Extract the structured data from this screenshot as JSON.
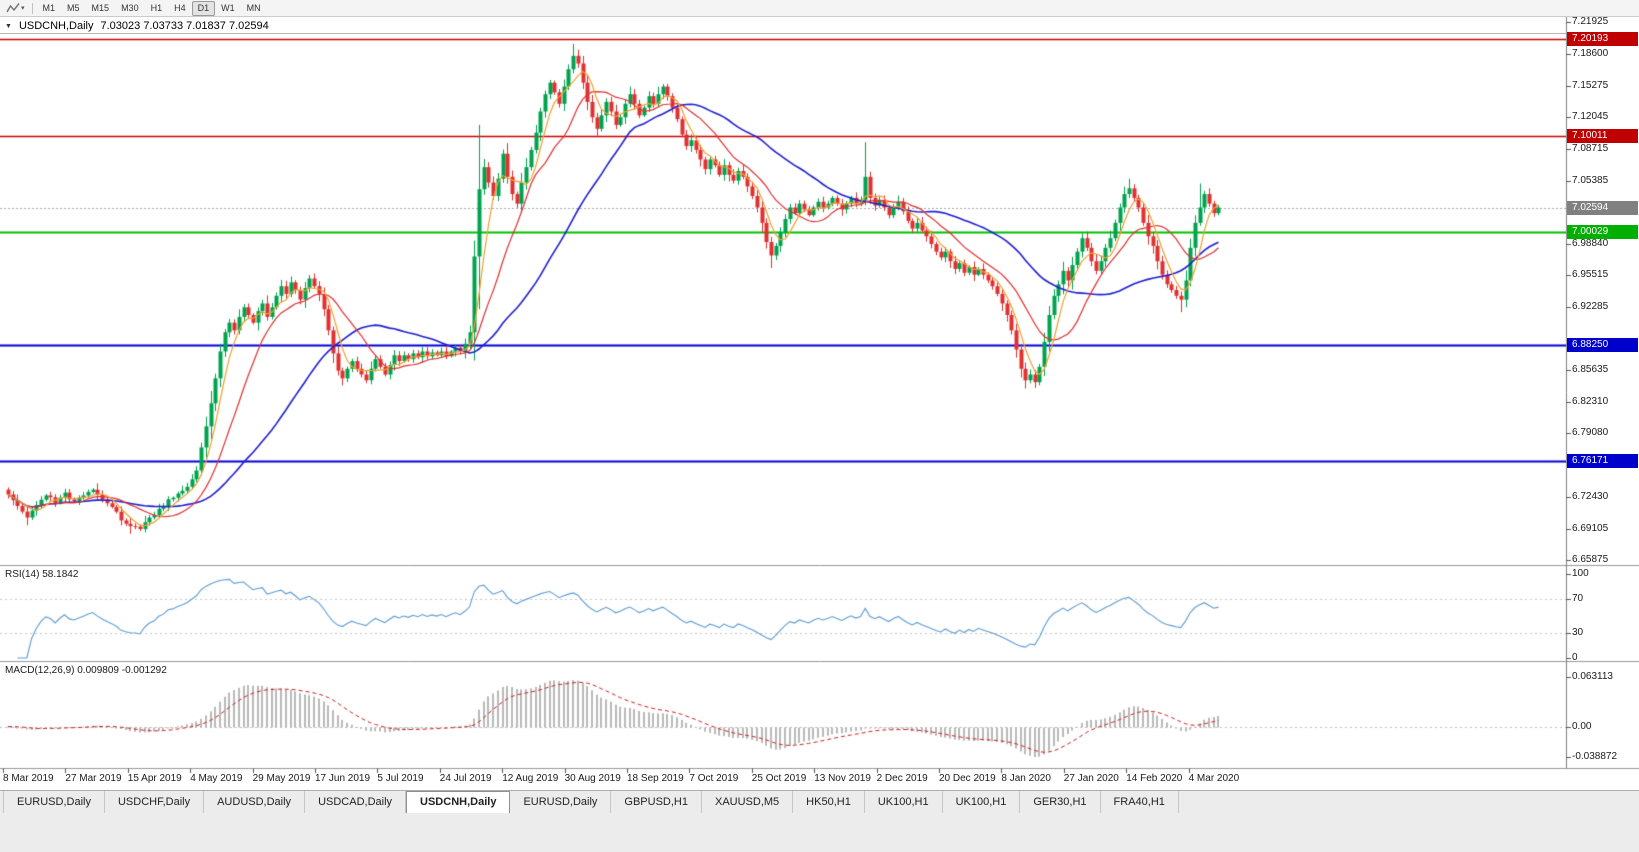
{
  "icons": {
    "collapse": "▼",
    "caret": "▾",
    "indicator": "zigzag-indicator-icon"
  },
  "toolbar": {
    "timeframes": [
      {
        "label": "M1",
        "active": false
      },
      {
        "label": "M5",
        "active": false
      },
      {
        "label": "M15",
        "active": false
      },
      {
        "label": "M30",
        "active": false
      },
      {
        "label": "H1",
        "active": false
      },
      {
        "label": "H4",
        "active": false
      },
      {
        "label": "D1",
        "active": true
      },
      {
        "label": "W1",
        "active": false
      },
      {
        "label": "MN",
        "active": false
      }
    ]
  },
  "chart": {
    "header": {
      "symbol": "USDCNH,Daily",
      "ohlc": "7.03023 7.03733 7.01837 7.02594"
    },
    "colors": {
      "up": "#00a24e",
      "down": "#e03131",
      "current_line": "#aaaaaa"
    },
    "y_ticks": [
      "7.21925",
      "7.18600",
      "7.15275",
      "7.12045",
      "7.08715",
      "7.05385",
      "6.98840",
      "6.95515",
      "6.92285",
      "6.85635",
      "6.82310",
      "6.79080",
      "6.72430",
      "6.69105",
      "6.65875"
    ],
    "badges": [
      {
        "label": "7.20193",
        "price": 7.20193,
        "bg": "#c00000"
      },
      {
        "label": "7.10011",
        "price": 7.10011,
        "bg": "#c00000"
      },
      {
        "label": "7.02594",
        "price": 7.02594,
        "bg": "#808080"
      },
      {
        "label": "7.00029",
        "price": 7.00029,
        "bg": "#00b000"
      },
      {
        "label": "6.88250",
        "price": 6.8825,
        "bg": "#0000cc"
      },
      {
        "label": "6.76171",
        "price": 6.76171,
        "bg": "#0000cc"
      }
    ]
  },
  "rsi": {
    "title": "RSI(14)",
    "value": "58.1842",
    "axis": [
      {
        "label": "100",
        "v": 100
      },
      {
        "label": "70",
        "v": 70
      },
      {
        "label": "30",
        "v": 30
      },
      {
        "label": "0",
        "v": 0
      }
    ],
    "range": [
      0,
      100
    ],
    "levels": [
      70,
      30
    ],
    "color": "#5e9cd3"
  },
  "macd": {
    "title": "MACD(12,26,9)",
    "values": "0.009809 -0.001292",
    "axis": [
      {
        "label": "0.063113",
        "v": 0.063113
      },
      {
        "label": "0.00",
        "v": 0
      },
      {
        "label": "-0.038872",
        "v": -0.038872
      }
    ],
    "range": [
      -0.038872,
      0.063113
    ],
    "histogram_color": "#b9b9b9",
    "signal_color": "#cc2222"
  },
  "tabs": {
    "active_index": 4,
    "items": [
      "EURUSD,Daily",
      "USDCHF,Daily",
      "AUDUSD,Daily",
      "USDCAD,Daily",
      "USDCNH,Daily",
      "EURUSD,Daily",
      "GBPUSD,H1",
      "XAUUSD,M5",
      "HK50,H1",
      "UK100,H1",
      "UK100,H1",
      "GER30,H1",
      "FRA40,H1"
    ]
  },
  "chart_data": {
    "type": "candlestick",
    "title": "USDCNH,Daily",
    "symbol": "USDCNH",
    "timeframe": "Daily",
    "last_quote": {
      "open": 7.03023,
      "high": 7.03733,
      "low": 7.01837,
      "close": 7.02594
    },
    "y_axis_range": [
      6.65875,
      7.21925
    ],
    "x_axis_dates": [
      "8 Mar 2019",
      "27 Mar 2019",
      "15 Apr 2019",
      "4 May 2019",
      "29 May 2019",
      "17 Jun 2019",
      "5 Jul 2019",
      "24 Jul 2019",
      "12 Aug 2019",
      "30 Aug 2019",
      "18 Sep 2019",
      "7 Oct 2019",
      "25 Oct 2019",
      "13 Nov 2019",
      "2 Dec 2019",
      "20 Dec 2019",
      "8 Jan 2020",
      "27 Jan 2020",
      "14 Feb 2020",
      "4 Mar 2020"
    ],
    "n_candles": 258,
    "noise_seed": 11,
    "close_anchors": [
      [
        0,
        6.727
      ],
      [
        2,
        6.715
      ],
      [
        4,
        6.703
      ],
      [
        6,
        6.716
      ],
      [
        8,
        6.726
      ],
      [
        10,
        6.718
      ],
      [
        12,
        6.729
      ],
      [
        14,
        6.72
      ],
      [
        16,
        6.726
      ],
      [
        18,
        6.732
      ],
      [
        20,
        6.722
      ],
      [
        22,
        6.714
      ],
      [
        24,
        6.7
      ],
      [
        26,
        6.694
      ],
      [
        28,
        6.691
      ],
      [
        30,
        6.703
      ],
      [
        32,
        6.712
      ],
      [
        34,
        6.722
      ],
      [
        36,
        6.728
      ],
      [
        38,
        6.735
      ],
      [
        40,
        6.752
      ],
      [
        41,
        6.776
      ],
      [
        42,
        6.798
      ],
      [
        43,
        6.822
      ],
      [
        44,
        6.848
      ],
      [
        45,
        6.876
      ],
      [
        46,
        6.896
      ],
      [
        47,
        6.906
      ],
      [
        48,
        6.898
      ],
      [
        49,
        6.912
      ],
      [
        50,
        6.922
      ],
      [
        51,
        6.914
      ],
      [
        52,
        6.906
      ],
      [
        53,
        6.918
      ],
      [
        54,
        6.926
      ],
      [
        55,
        6.912
      ],
      [
        56,
        6.922
      ],
      [
        57,
        6.934
      ],
      [
        58,
        6.944
      ],
      [
        59,
        6.936
      ],
      [
        60,
        6.948
      ],
      [
        61,
        6.94
      ],
      [
        62,
        6.93
      ],
      [
        63,
        6.942
      ],
      [
        64,
        6.952
      ],
      [
        65,
        6.944
      ],
      [
        66,
        6.936
      ],
      [
        67,
        6.92
      ],
      [
        68,
        6.898
      ],
      [
        69,
        6.874
      ],
      [
        70,
        6.856
      ],
      [
        71,
        6.848
      ],
      [
        72,
        6.858
      ],
      [
        73,
        6.866
      ],
      [
        74,
        6.858
      ],
      [
        75,
        6.852
      ],
      [
        76,
        6.846
      ],
      [
        77,
        6.858
      ],
      [
        78,
        6.868
      ],
      [
        79,
        6.86
      ],
      [
        80,
        6.852
      ],
      [
        81,
        6.862
      ],
      [
        82,
        6.872
      ],
      [
        83,
        6.866
      ],
      [
        84,
        6.872
      ],
      [
        85,
        6.868
      ],
      [
        86,
        6.874
      ],
      [
        87,
        6.87
      ],
      [
        88,
        6.876
      ],
      [
        89,
        6.871
      ],
      [
        90,
        6.875
      ],
      [
        91,
        6.872
      ],
      [
        92,
        6.876
      ],
      [
        93,
        6.871
      ],
      [
        94,
        6.876
      ],
      [
        95,
        6.88
      ],
      [
        96,
        6.876
      ],
      [
        97,
        6.884
      ],
      [
        98,
        6.896
      ],
      [
        99,
        6.975
      ],
      [
        100,
        7.045
      ],
      [
        101,
        7.068
      ],
      [
        102,
        7.052
      ],
      [
        103,
        7.038
      ],
      [
        104,
        7.056
      ],
      [
        105,
        7.082
      ],
      [
        106,
        7.058
      ],
      [
        107,
        7.04
      ],
      [
        108,
        7.03
      ],
      [
        109,
        7.052
      ],
      [
        110,
        7.068
      ],
      [
        111,
        7.086
      ],
      [
        112,
        7.104
      ],
      [
        113,
        7.126
      ],
      [
        114,
        7.144
      ],
      [
        115,
        7.156
      ],
      [
        116,
        7.146
      ],
      [
        117,
        7.134
      ],
      [
        118,
        7.152
      ],
      [
        119,
        7.17
      ],
      [
        120,
        7.184
      ],
      [
        121,
        7.176
      ],
      [
        122,
        7.156
      ],
      [
        123,
        7.136
      ],
      [
        124,
        7.12
      ],
      [
        125,
        7.108
      ],
      [
        126,
        7.122
      ],
      [
        127,
        7.136
      ],
      [
        128,
        7.126
      ],
      [
        129,
        7.112
      ],
      [
        130,
        7.12
      ],
      [
        131,
        7.134
      ],
      [
        132,
        7.144
      ],
      [
        133,
        7.134
      ],
      [
        134,
        7.122
      ],
      [
        135,
        7.13
      ],
      [
        136,
        7.142
      ],
      [
        137,
        7.134
      ],
      [
        138,
        7.144
      ],
      [
        139,
        7.152
      ],
      [
        140,
        7.142
      ],
      [
        141,
        7.13
      ],
      [
        142,
        7.118
      ],
      [
        143,
        7.102
      ],
      [
        144,
        7.09
      ],
      [
        145,
        7.096
      ],
      [
        146,
        7.086
      ],
      [
        147,
        7.076
      ],
      [
        148,
        7.066
      ],
      [
        149,
        7.076
      ],
      [
        150,
        7.07
      ],
      [
        151,
        7.06
      ],
      [
        152,
        7.07
      ],
      [
        153,
        7.06
      ],
      [
        154,
        7.054
      ],
      [
        155,
        7.064
      ],
      [
        156,
        7.058
      ],
      [
        157,
        7.048
      ],
      [
        158,
        7.038
      ],
      [
        159,
        7.026
      ],
      [
        160,
        7.01
      ],
      [
        161,
        6.99
      ],
      [
        162,
        6.976
      ],
      [
        163,
        6.986
      ],
      [
        164,
        7.0
      ],
      [
        165,
        7.014
      ],
      [
        166,
        7.026
      ],
      [
        167,
        7.02
      ],
      [
        168,
        7.03
      ],
      [
        169,
        7.024
      ],
      [
        170,
        7.018
      ],
      [
        171,
        7.026
      ],
      [
        172,
        7.032
      ],
      [
        173,
        7.026
      ],
      [
        174,
        7.03
      ],
      [
        175,
        7.036
      ],
      [
        176,
        7.03
      ],
      [
        177,
        7.024
      ],
      [
        178,
        7.03
      ],
      [
        179,
        7.036
      ],
      [
        180,
        7.03
      ],
      [
        181,
        7.034
      ],
      [
        182,
        7.058
      ],
      [
        183,
        7.036
      ],
      [
        184,
        7.028
      ],
      [
        185,
        7.034
      ],
      [
        186,
        7.026
      ],
      [
        187,
        7.018
      ],
      [
        188,
        7.026
      ],
      [
        189,
        7.032
      ],
      [
        190,
        7.022
      ],
      [
        191,
        7.012
      ],
      [
        192,
        7.004
      ],
      [
        193,
        7.01
      ],
      [
        194,
        7.002
      ],
      [
        195,
        6.996
      ],
      [
        196,
        6.988
      ],
      [
        197,
        6.98
      ],
      [
        198,
        6.974
      ],
      [
        199,
        6.98
      ],
      [
        200,
        6.97
      ],
      [
        201,
        6.962
      ],
      [
        202,
        6.968
      ],
      [
        203,
        6.958
      ],
      [
        204,
        6.964
      ],
      [
        205,
        6.956
      ],
      [
        206,
        6.962
      ],
      [
        207,
        6.956
      ],
      [
        208,
        6.95
      ],
      [
        209,
        6.944
      ],
      [
        210,
        6.936
      ],
      [
        211,
        6.926
      ],
      [
        212,
        6.914
      ],
      [
        213,
        6.898
      ],
      [
        214,
        6.878
      ],
      [
        215,
        6.858
      ],
      [
        216,
        6.846
      ],
      [
        217,
        6.852
      ],
      [
        218,
        6.844
      ],
      [
        219,
        6.86
      ],
      [
        220,
        6.886
      ],
      [
        221,
        6.914
      ],
      [
        222,
        6.934
      ],
      [
        223,
        6.946
      ],
      [
        224,
        6.96
      ],
      [
        225,
        6.95
      ],
      [
        226,
        6.966
      ],
      [
        227,
        6.98
      ],
      [
        228,
        6.994
      ],
      [
        229,
        6.984
      ],
      [
        230,
        6.97
      ],
      [
        231,
        6.96
      ],
      [
        232,
        6.97
      ],
      [
        233,
        6.984
      ],
      [
        234,
        6.994
      ],
      [
        235,
        7.01
      ],
      [
        236,
        7.026
      ],
      [
        237,
        7.04
      ],
      [
        238,
        7.046
      ],
      [
        239,
        7.036
      ],
      [
        240,
        7.026
      ],
      [
        241,
        7.01
      ],
      [
        242,
        6.996
      ],
      [
        243,
        6.986
      ],
      [
        244,
        6.97
      ],
      [
        245,
        6.956
      ],
      [
        246,
        6.946
      ],
      [
        247,
        6.94
      ],
      [
        248,
        6.934
      ],
      [
        249,
        6.93
      ],
      [
        250,
        6.95
      ],
      [
        251,
        6.984
      ],
      [
        252,
        7.01
      ],
      [
        253,
        7.026
      ],
      [
        254,
        7.04
      ],
      [
        255,
        7.03
      ],
      [
        256,
        7.02
      ],
      [
        257,
        7.026
      ]
    ],
    "spikes": [
      {
        "i": 4,
        "low": 6.695
      },
      {
        "i": 26,
        "low": 6.686
      },
      {
        "i": 71,
        "low": 6.842
      },
      {
        "i": 100,
        "low": 6.92,
        "high": 7.112
      },
      {
        "i": 120,
        "high": 7.1965
      },
      {
        "i": 162,
        "low": 6.963
      },
      {
        "i": 182,
        "high": 7.094
      },
      {
        "i": 216,
        "low": 6.839
      },
      {
        "i": 218,
        "low": 6.838
      },
      {
        "i": 238,
        "high": 7.056
      },
      {
        "i": 249,
        "low": 6.917
      },
      {
        "i": 253,
        "high": 7.051
      }
    ],
    "moving_averages": [
      {
        "period": 34,
        "color": "#2020cf"
      },
      {
        "period": 13,
        "color": "#e03131"
      },
      {
        "period": 5,
        "color": "#f0a030"
      }
    ],
    "h_levels": [
      {
        "price": 7.20193,
        "color": "#cc0000",
        "width": 1.3
      },
      {
        "price": 7.10011,
        "color": "#cc0000",
        "width": 1.3
      },
      {
        "price": 7.00029,
        "color": "#00c000",
        "width": 1.8
      },
      {
        "price": 6.8825,
        "color": "#0000d8",
        "width": 1.8
      },
      {
        "price": 6.76171,
        "color": "#0000d8",
        "width": 1.8
      }
    ],
    "current_price_line": {
      "price": 7.02594,
      "color": "#aaaaaa"
    },
    "indicators": [
      {
        "type": "RSI",
        "period": 14,
        "current": 58.1842,
        "levels": [
          70,
          30
        ],
        "range": [
          0,
          100
        ]
      },
      {
        "type": "MACD",
        "fast": 12,
        "slow": 26,
        "signal": 9,
        "current_macd": 0.009809,
        "current_signal": -0.001292,
        "range": [
          -0.038872,
          0.063113
        ]
      }
    ]
  }
}
